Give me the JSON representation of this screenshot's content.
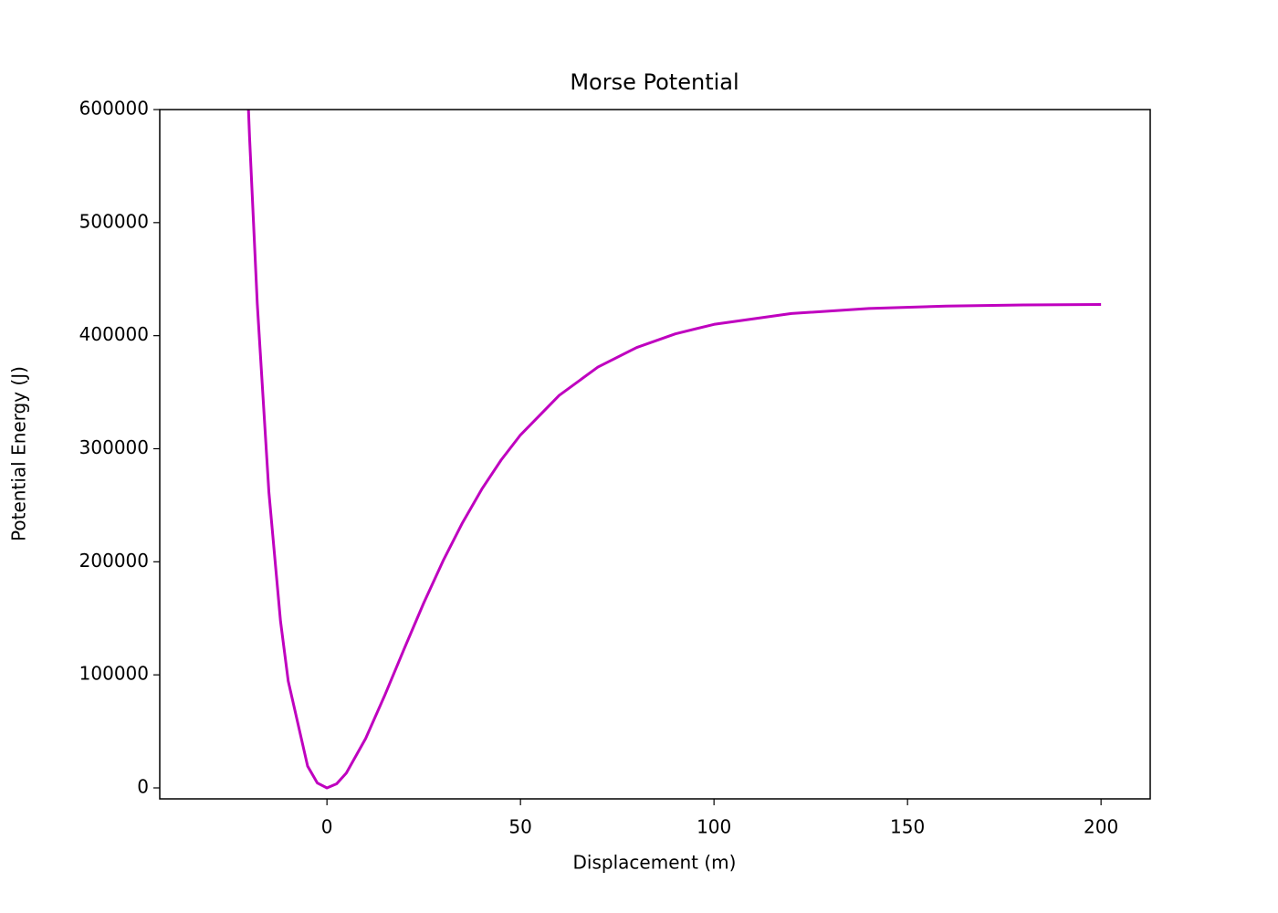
{
  "chart_data": {
    "type": "line",
    "title": "Morse Potential",
    "x_label": "Displacement (m)",
    "y_label": "Potential Energy (J)",
    "x": [
      -21,
      -20,
      -18,
      -15,
      -12,
      -10,
      -5,
      -2.5,
      0,
      2.5,
      5,
      10,
      15,
      20,
      25,
      30,
      35,
      40,
      45,
      50,
      60,
      70,
      80,
      90,
      100,
      120,
      140,
      160,
      180,
      200
    ],
    "series": [
      {
        "color": "#bf00bf",
        "values": [
          663000,
          575700,
          428000,
          261500,
          147500,
          94400,
          19300,
          4400,
          0,
          3600,
          13100,
          43700,
          82400,
          123400,
          163500,
          200800,
          234400,
          264200,
          290000,
          312200,
          347200,
          372200,
          389500,
          401600,
          410000,
          419600,
          424100,
          426200,
          427200,
          427600
        ]
      }
    ],
    "xlim": [
      -43.2,
      212.7
    ],
    "xticks": [
      0,
      50,
      100,
      150,
      200
    ],
    "ylim": [
      -9700,
      600000
    ],
    "yticks": [
      0,
      100000,
      200000,
      300000,
      400000,
      500000,
      600000
    ],
    "grid": false
  }
}
